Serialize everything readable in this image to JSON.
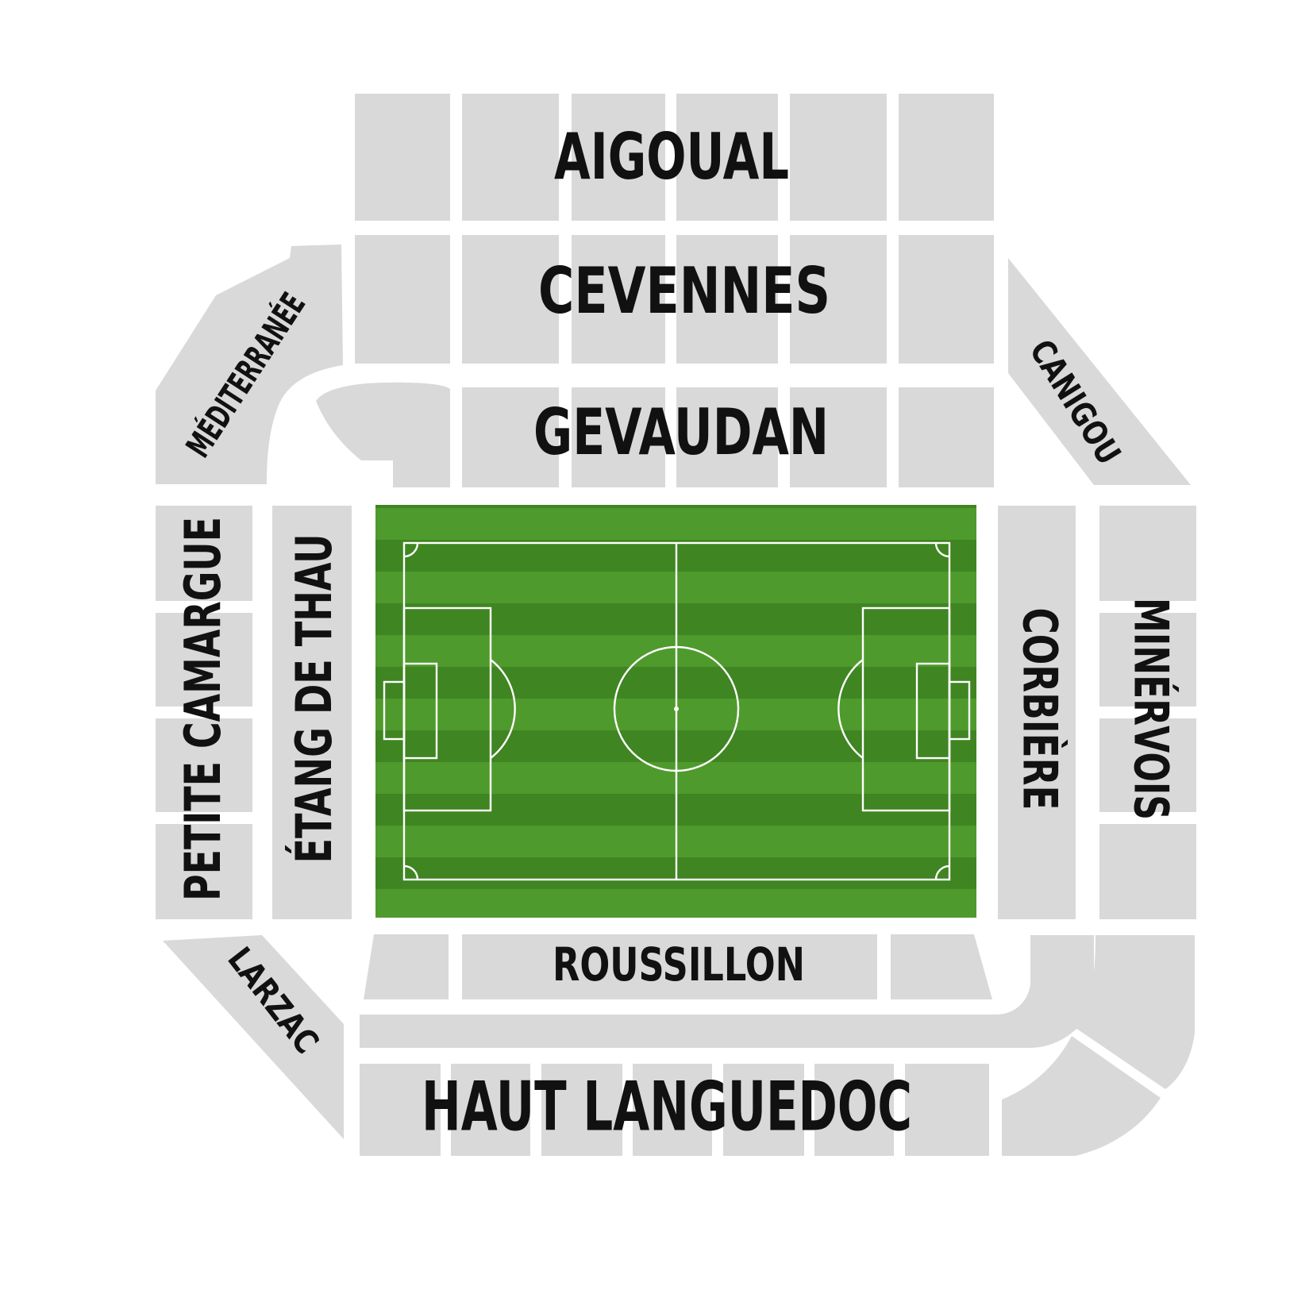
{
  "stands": {
    "aigoual": "AIGOUAL",
    "cevennes": "CEVENNES",
    "gevaudan": "GEVAUDAN",
    "mediterranee": "MÉDITERRANÉE",
    "canigou": "CANIGOU",
    "petite_camargue": "PETITE CAMARGUE",
    "etang_de_thau": "ÉTANG DE THAU",
    "corbiere": "CORBIÈRE",
    "minervois": "MINÉRVOIS",
    "larzac": "LARZAC",
    "roussillon": "ROUSSILLON",
    "haut_languedoc": "HAUT LANGUEDOC"
  },
  "colors": {
    "stand_block": "#d9d9d9",
    "pitch_light": "#4f9a2c",
    "pitch_dark": "#3f8522",
    "label": "#111111",
    "pitch_lines": "#ffffff"
  }
}
